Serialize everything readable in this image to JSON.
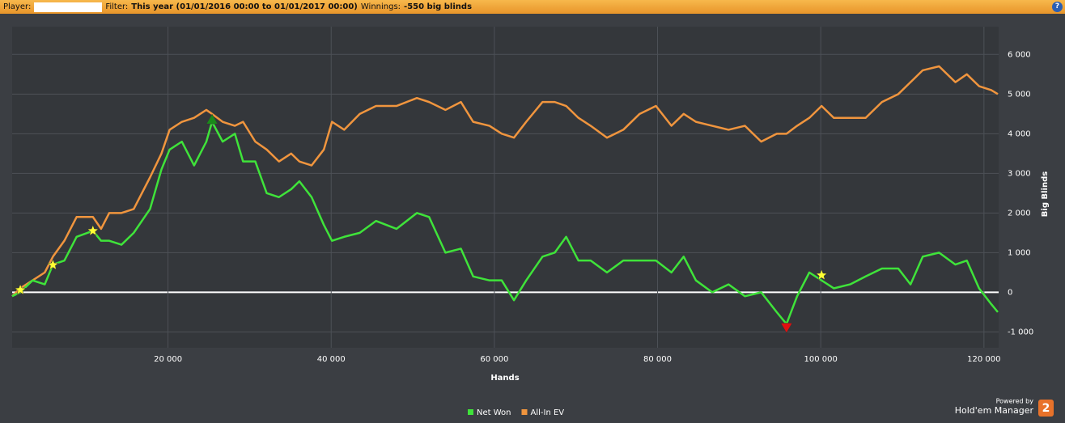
{
  "header": {
    "player_label": "Player:",
    "filter_label": "Filter:",
    "filter_value": "This year (01/01/2016 00:00 to 01/01/2017 00:00)",
    "winnings_label": "Winnings:",
    "winnings_value": "-550 big blinds",
    "help": "?"
  },
  "branding": {
    "powered_by": "Powered by",
    "product": "Hold'em Manager",
    "version": "2"
  },
  "chart_data": {
    "type": "line",
    "x_label": "Hands",
    "y_label": "Big Blinds",
    "x": [
      900,
      1900,
      3400,
      4900,
      5900,
      7300,
      8800,
      10800,
      11800,
      12800,
      14300,
      15800,
      17800,
      19200,
      20200,
      21700,
      23200,
      24700,
      25400,
      26700,
      28200,
      29200,
      30700,
      32100,
      33600,
      35100,
      36100,
      37600,
      39100,
      40100,
      41600,
      43500,
      45500,
      48000,
      50500,
      52000,
      54000,
      55900,
      57400,
      59400,
      60900,
      62400,
      63900,
      65900,
      67400,
      68800,
      70300,
      71800,
      73800,
      75800,
      77800,
      79800,
      81700,
      83200,
      84700,
      86700,
      88700,
      90700,
      92700,
      94600,
      95800,
      97100,
      98600,
      100100,
      101600,
      103600,
      105500,
      107500,
      109500,
      111000,
      112500,
      114500,
      116500,
      117900,
      119400,
      120900,
      121700
    ],
    "series": [
      {
        "name": "Net Won",
        "color": "#3fe33a",
        "values": [
          -100,
          0,
          300,
          200,
          700,
          800,
          1400,
          1550,
          1300,
          1300,
          1200,
          1500,
          2100,
          3100,
          3600,
          3800,
          3200,
          3800,
          4300,
          3800,
          4000,
          3300,
          3300,
          2500,
          2400,
          2600,
          2800,
          2400,
          1700,
          1300,
          1400,
          1500,
          1800,
          1600,
          2000,
          1900,
          1000,
          1100,
          400,
          300,
          300,
          -200,
          300,
          900,
          1000,
          1400,
          800,
          800,
          500,
          800,
          800,
          800,
          500,
          900,
          300,
          0,
          200,
          -100,
          0,
          -500,
          -800,
          -100,
          500,
          300,
          100,
          200,
          400,
          600,
          600,
          200,
          900,
          1000,
          700,
          800,
          100,
          -300,
          -500
        ]
      },
      {
        "name": "All-In EV",
        "color": "#f0953e",
        "values": [
          -100,
          100,
          300,
          500,
          900,
          1300,
          1900,
          1900,
          1600,
          2000,
          2000,
          2100,
          2900,
          3500,
          4100,
          4300,
          4400,
          4600,
          4500,
          4300,
          4200,
          4300,
          3800,
          3600,
          3300,
          3500,
          3300,
          3200,
          3600,
          4300,
          4100,
          4500,
          4700,
          4700,
          4900,
          4800,
          4600,
          4800,
          4300,
          4200,
          4000,
          3900,
          4300,
          4800,
          4800,
          4700,
          4400,
          4200,
          3900,
          4100,
          4500,
          4700,
          4200,
          4500,
          4300,
          4200,
          4100,
          4200,
          3800,
          4000,
          4000,
          4200,
          4400,
          4700,
          4400,
          4400,
          4400,
          4800,
          5000,
          5300,
          5600,
          5700,
          5300,
          5500,
          5200,
          5100,
          5000
        ]
      }
    ],
    "markers": [
      {
        "x": 1900,
        "y": 60,
        "symbol": "star",
        "color": "#ffff33"
      },
      {
        "x": 5900,
        "y": 690,
        "symbol": "star",
        "color": "#ffff33"
      },
      {
        "x": 10800,
        "y": 1550,
        "symbol": "star",
        "color": "#ffff33"
      },
      {
        "x": 25400,
        "y": 4350,
        "symbol": "triangle-up",
        "color": "#1a8a1a"
      },
      {
        "x": 95800,
        "y": -880,
        "symbol": "triangle-down",
        "color": "#e01010"
      },
      {
        "x": 100100,
        "y": 430,
        "symbol": "star",
        "color": "#ffff33"
      }
    ],
    "xlim": [
      900,
      121800
    ],
    "xticks": [
      {
        "value": 20000,
        "label": "20 000"
      },
      {
        "value": 40000,
        "label": "40 000"
      },
      {
        "value": 60000,
        "label": "60 000"
      },
      {
        "value": 80000,
        "label": "80 000"
      },
      {
        "value": 100000,
        "label": "100 000"
      },
      {
        "value": 120000,
        "label": "120 000"
      }
    ],
    "ylim": [
      -1400,
      6700
    ],
    "yticks": [
      {
        "value": -1000,
        "label": "-1 000"
      },
      0,
      {
        "value": 1000,
        "label": "1 000"
      },
      {
        "value": 2000,
        "label": "2 000"
      },
      {
        "value": 3000,
        "label": "3 000"
      },
      {
        "value": 4000,
        "label": "4 000"
      },
      {
        "value": 5000,
        "label": "5 000"
      },
      {
        "value": 6000,
        "label": "6 000"
      }
    ],
    "grid": true,
    "legend": "bottom"
  }
}
